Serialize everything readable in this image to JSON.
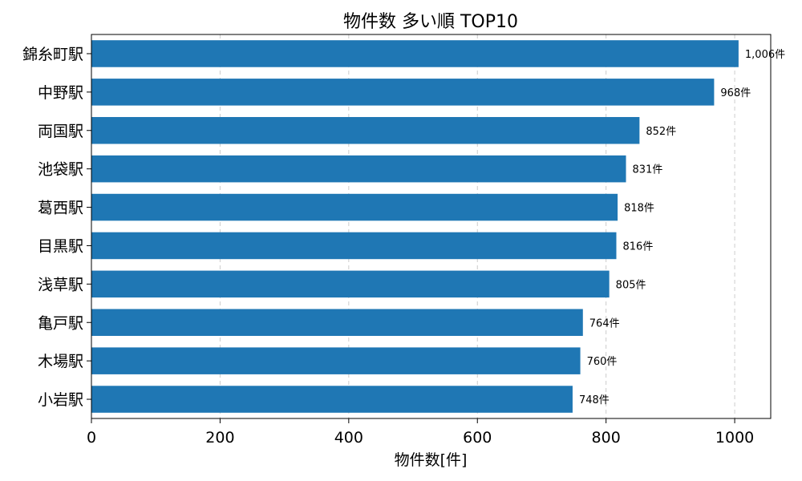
{
  "chart_data": {
    "type": "bar",
    "orientation": "horizontal",
    "title": "物件数 多い順 TOP10",
    "xlabel": "物件数[件]",
    "ylabel": "",
    "categories": [
      "錦糸町駅",
      "中野駅",
      "両国駅",
      "池袋駅",
      "葛西駅",
      "目黒駅",
      "浅草駅",
      "亀戸駅",
      "木場駅",
      "小岩駅"
    ],
    "values": [
      1006,
      968,
      852,
      831,
      818,
      816,
      805,
      764,
      760,
      748
    ],
    "data_labels": [
      "1,006件",
      "968件",
      "852件",
      "831件",
      "818件",
      "816件",
      "805件",
      "764件",
      "760件",
      "748件"
    ],
    "xlim": [
      0,
      1056
    ],
    "xticks": [
      0,
      200,
      400,
      600,
      800,
      1000
    ],
    "xtick_labels": [
      "0",
      "200",
      "400",
      "600",
      "800",
      "1000"
    ],
    "grid": "vertical-dashed",
    "bar_color": "#1f77b4"
  }
}
